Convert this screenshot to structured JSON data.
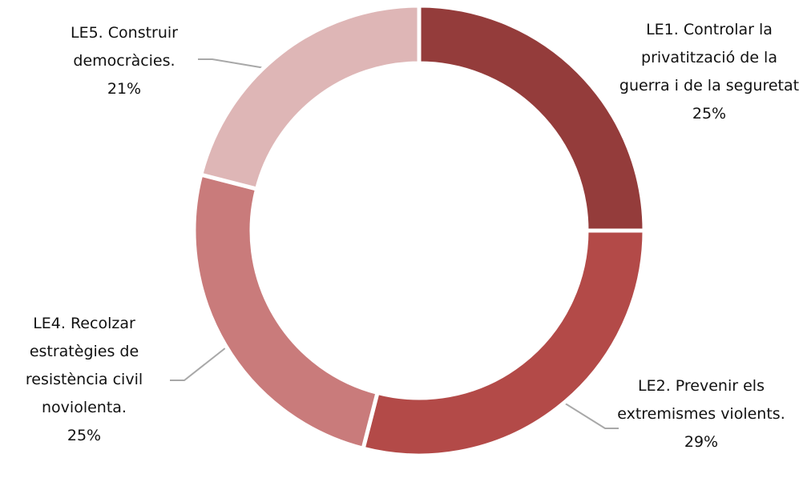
{
  "chart_data": {
    "type": "donut",
    "categories": [
      "LE1. Controlar la privatització de la guerra i de la seguretat",
      "LE2. Prevenir els extremismes violents.",
      "LE4. Recolzar estratègies de resistència civil noviolenta.",
      "LE5. Construir democràcies."
    ],
    "values": [
      25,
      29,
      25,
      21
    ],
    "value_labels": [
      "25%",
      "29%",
      "25%",
      "21%"
    ],
    "colors": [
      "#943c3b",
      "#b34a48",
      "#c97b7b",
      "#deb6b6"
    ]
  }
}
